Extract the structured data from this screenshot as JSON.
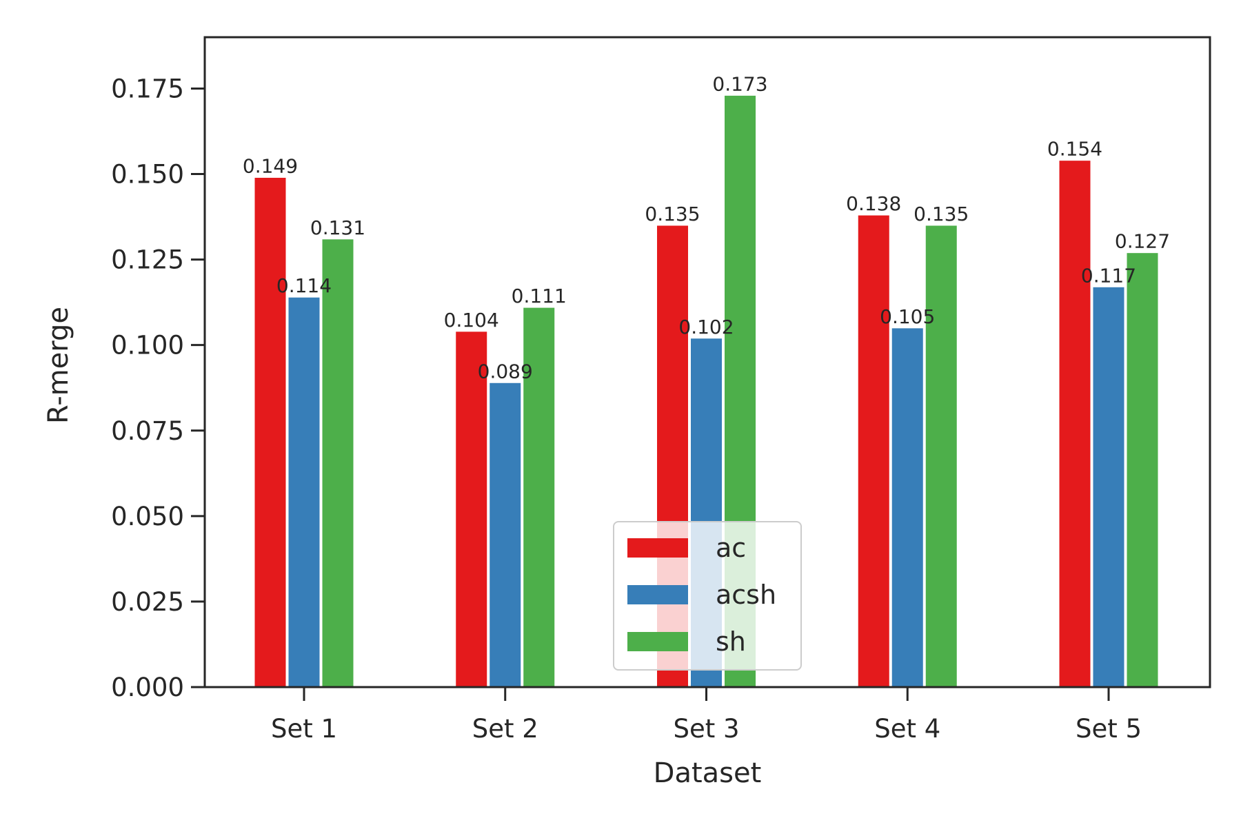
{
  "chart_data": {
    "type": "bar",
    "title": "",
    "xlabel": "Dataset",
    "ylabel": "R-merge",
    "categories": [
      "Set 1",
      "Set 2",
      "Set 3",
      "Set 4",
      "Set 5"
    ],
    "series": [
      {
        "name": "ac",
        "color": "#e41a1c",
        "values": [
          0.149,
          0.104,
          0.135,
          0.138,
          0.154
        ],
        "labels": [
          "0.149",
          "0.104",
          "0.135",
          "0.138",
          "0.154"
        ]
      },
      {
        "name": "acsh",
        "color": "#377eb8",
        "values": [
          0.114,
          0.089,
          0.102,
          0.105,
          0.117
        ],
        "labels": [
          "0.114",
          "0.089",
          "0.102",
          "0.105",
          "0.117"
        ]
      },
      {
        "name": "sh",
        "color": "#4daf4a",
        "values": [
          0.131,
          0.111,
          0.173,
          0.135,
          0.127
        ],
        "labels": [
          "0.131",
          "0.111",
          "0.173",
          "0.135",
          "0.127"
        ]
      }
    ],
    "ylim": [
      0,
      0.19
    ],
    "yticks": [
      0,
      0.025,
      0.05,
      0.075,
      0.1,
      0.125,
      0.15,
      0.175
    ],
    "ytick_labels": [
      "0.000",
      "0.025",
      "0.050",
      "0.075",
      "0.100",
      "0.125",
      "0.150",
      "0.175"
    ],
    "grid": false,
    "legend_position": "lower center"
  }
}
